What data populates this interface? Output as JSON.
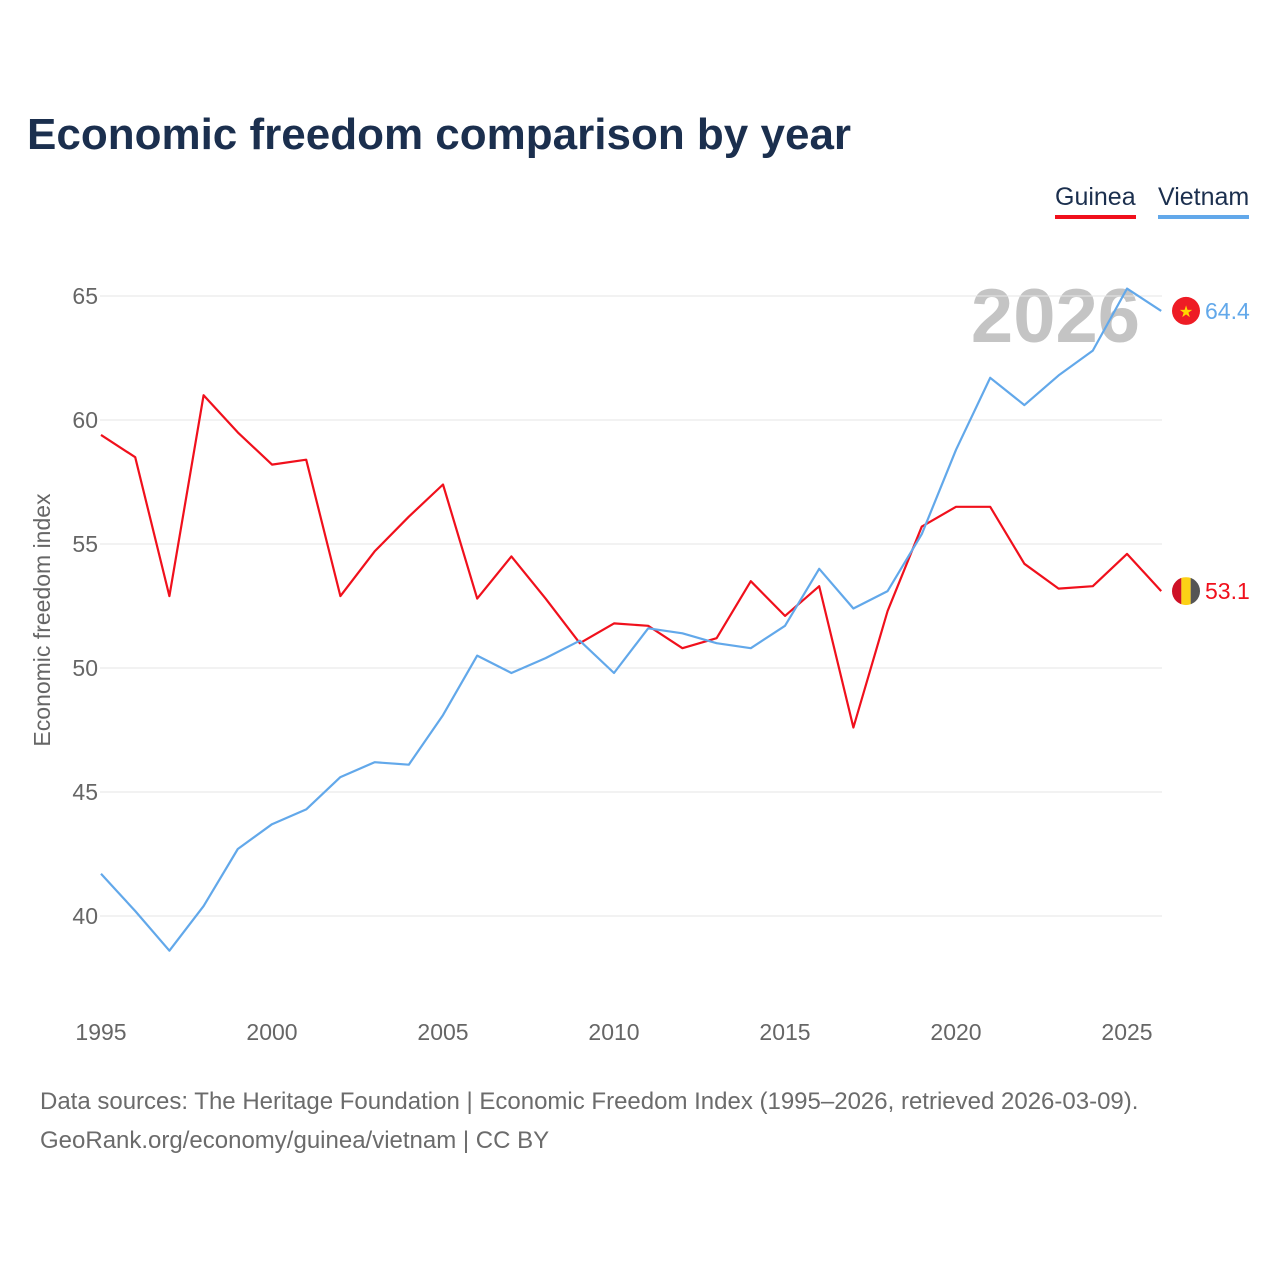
{
  "chart_data": {
    "type": "line",
    "title": "Economic freedom comparison by year",
    "ylabel": "Economic freedom index",
    "xlabel": "",
    "ylim": [
      36,
      67
    ],
    "xlim": [
      1995,
      2026
    ],
    "yticks": [
      40,
      45,
      50,
      55,
      60,
      65
    ],
    "xticks": [
      1995,
      2000,
      2005,
      2010,
      2015,
      2020,
      2025
    ],
    "grid": true,
    "legend_position": "top-right",
    "watermark_year": "2026",
    "x": [
      1995,
      1996,
      1997,
      1998,
      1999,
      2000,
      2001,
      2002,
      2003,
      2004,
      2005,
      2006,
      2007,
      2008,
      2009,
      2010,
      2011,
      2012,
      2013,
      2014,
      2015,
      2016,
      2017,
      2018,
      2019,
      2020,
      2021,
      2022,
      2023,
      2024,
      2025,
      2026
    ],
    "series": [
      {
        "name": "Guinea",
        "color": "#f0101c",
        "end_label": "53.1",
        "values": [
          59.4,
          58.5,
          52.9,
          61.0,
          59.5,
          58.2,
          58.4,
          52.9,
          54.7,
          56.1,
          57.4,
          52.8,
          54.5,
          52.8,
          51.0,
          51.8,
          51.7,
          50.8,
          51.2,
          53.5,
          52.1,
          53.3,
          47.6,
          52.3,
          55.7,
          56.5,
          56.5,
          54.2,
          53.2,
          53.3,
          54.6,
          53.1
        ]
      },
      {
        "name": "Vietnam",
        "color": "#62a8ea",
        "end_label": "64.4",
        "values": [
          41.7,
          40.2,
          38.6,
          40.4,
          42.7,
          43.7,
          44.3,
          45.6,
          46.2,
          46.1,
          48.1,
          50.5,
          49.8,
          50.4,
          51.1,
          49.8,
          51.6,
          51.4,
          51.0,
          50.8,
          51.7,
          54.0,
          52.4,
          53.1,
          55.4,
          58.8,
          61.7,
          60.6,
          61.8,
          62.8,
          65.3,
          64.4
        ]
      }
    ]
  },
  "footer": {
    "line1": "Data sources: The Heritage Foundation | Economic Freedom Index (1995–2026, retrieved 2026-03-09).",
    "line2": "GeoRank.org/economy/guinea/vietnam | CC BY"
  }
}
